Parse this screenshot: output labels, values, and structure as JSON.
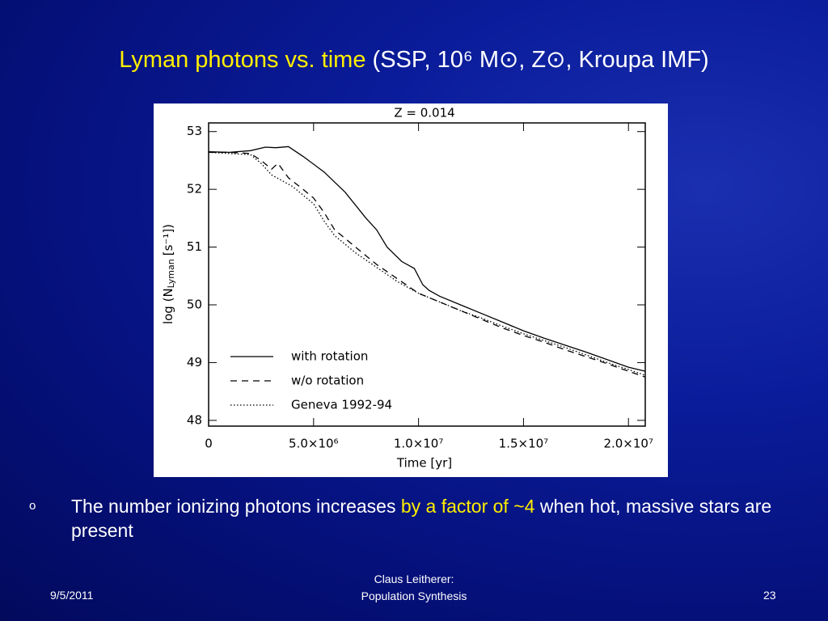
{
  "slide": {
    "title": {
      "highlight": "Lyman photons vs. time",
      "rest": "(SSP, 10⁶ M⊙, Z⊙, Kroupa IMF)"
    },
    "bullets": [
      {
        "before": "The number ionizing photons increases",
        "highlight": "by a factor of ~4",
        "after": "when hot, massive stars are present"
      }
    ],
    "footer": {
      "date": "9/5/2011",
      "author": [
        "Claus Leitherer:",
        "Population Synthesis"
      ],
      "page": "23"
    }
  },
  "chart_data": {
    "type": "line",
    "title": "Z = 0.014",
    "xlabel": "Time [yr]",
    "ylabel": {
      "before": "log (N",
      "sub": "Lyman",
      "after": "[s⁻¹])"
    },
    "xlim": [
      0,
      20800000
    ],
    "ylim": [
      47.9,
      53.15
    ],
    "xticks": [
      0,
      {
        "value": 5000000,
        "label": "5.0×10⁶"
      },
      {
        "value": 10000000,
        "label": "1.0×10⁷"
      },
      {
        "value": 15000000,
        "label": "1.5×10⁷"
      },
      {
        "value": 20000000,
        "label": "2.0×10⁷"
      }
    ],
    "yticks": [
      48,
      49,
      50,
      51,
      52,
      53
    ],
    "legend": "lower left",
    "series": [
      {
        "name": "with rotation",
        "color": "#000000",
        "dash": "solid",
        "x": [
          0,
          1000000,
          2000000,
          2700000,
          3200000,
          3800000,
          4500000,
          5500000,
          6500000,
          7500000,
          8000000,
          8500000,
          9200000,
          9800000,
          10200000,
          10500000,
          11000000,
          12000000,
          13000000,
          14000000,
          15000000,
          16000000,
          17000000,
          18000000,
          19000000,
          20000000,
          20800000
        ],
        "values": [
          52.65,
          52.64,
          52.67,
          52.73,
          52.72,
          52.74,
          52.57,
          52.3,
          51.95,
          51.5,
          51.3,
          51.0,
          50.75,
          50.63,
          50.35,
          50.25,
          50.15,
          50.0,
          49.85,
          49.7,
          49.55,
          49.42,
          49.3,
          49.18,
          49.05,
          48.92,
          48.85
        ]
      },
      {
        "name": "w/o rotation",
        "color": "#000000",
        "dash": "dashed",
        "x": [
          0,
          1000000,
          2000000,
          2500000,
          3000000,
          3300000,
          3800000,
          4500000,
          5000000,
          5500000,
          6000000,
          7000000,
          8000000,
          9000000,
          10000000,
          11000000,
          12000000,
          13000000,
          14000000,
          15000000,
          16000000,
          17000000,
          18000000,
          19000000,
          20000000,
          20800000
        ],
        "values": [
          52.64,
          52.64,
          52.62,
          52.5,
          52.35,
          52.45,
          52.2,
          52.0,
          51.85,
          51.6,
          51.3,
          51.0,
          50.7,
          50.45,
          50.2,
          50.05,
          49.9,
          49.75,
          49.6,
          49.47,
          49.35,
          49.22,
          49.1,
          48.98,
          48.85,
          48.75
        ]
      },
      {
        "name": "Geneva 1992-94",
        "color": "#000000",
        "dash": "dotted",
        "x": [
          0,
          2000000,
          2500000,
          3000000,
          4000000,
          5000000,
          5500000,
          6000000,
          7000000,
          8000000,
          9000000,
          10000000,
          11000000,
          12000000,
          13000000,
          14000000,
          15000000,
          16000000,
          17000000,
          18000000,
          19000000,
          20000000,
          20800000
        ],
        "values": [
          52.64,
          52.6,
          52.45,
          52.25,
          52.05,
          51.75,
          51.45,
          51.2,
          50.9,
          50.65,
          50.4,
          50.2,
          50.05,
          49.9,
          49.77,
          49.63,
          49.5,
          49.38,
          49.26,
          49.13,
          49.0,
          48.88,
          48.78
        ]
      }
    ]
  }
}
